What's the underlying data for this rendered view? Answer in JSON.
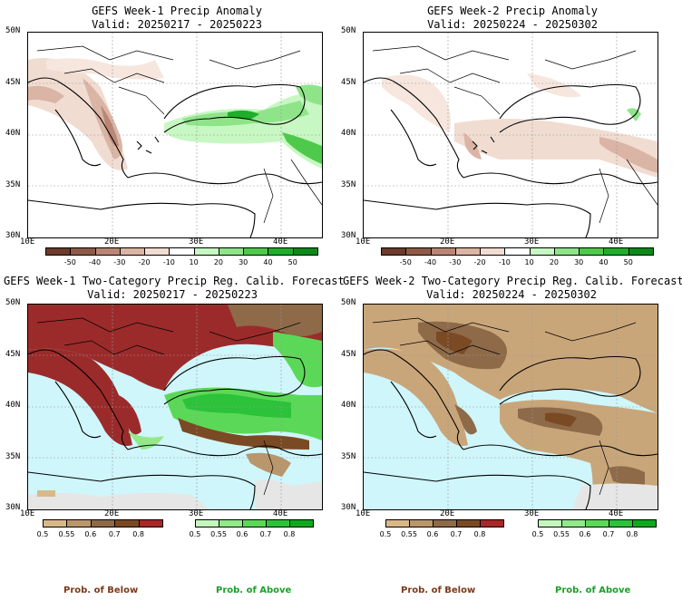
{
  "panels": {
    "p1": {
      "title": "GEFS Week-1 Precip Anomaly",
      "valid": "Valid: 20250217 - 20250223"
    },
    "p2": {
      "title": "GEFS Week-2 Precip Anomaly",
      "valid": "Valid: 20250224 - 20250302"
    },
    "p3": {
      "title": "GEFS Week-1 Two-Category Precip Reg. Calib. Forecast",
      "valid": "Valid: 20250217 - 20250223"
    },
    "p4": {
      "title": "GEFS Week-2 Two-Category Precip Reg. Calib. Forecast",
      "valid": "Valid: 20250224 - 20250302"
    }
  },
  "axes": {
    "lat_labels": [
      "50N",
      "45N",
      "40N",
      "35N",
      "30N"
    ],
    "lon_labels": [
      "10E",
      "20E",
      "30E",
      "40E"
    ]
  },
  "anomaly_colorbar": {
    "ticks": [
      "-50",
      "-40",
      "-30",
      "-20",
      "-10",
      "10",
      "20",
      "30",
      "40",
      "50"
    ],
    "colors": [
      "#6b3b2b",
      "#8e5a48",
      "#b98676",
      "#dab4a4",
      "#f1dcd2",
      "#ffffff",
      "#c7f7c2",
      "#8fe48a",
      "#4fc94c",
      "#1fae2c",
      "#0b8a1c"
    ]
  },
  "prob_below_colorbar": {
    "ticks": [
      "0.5",
      "0.55",
      "0.6",
      "0.7",
      "0.8"
    ],
    "colors": [
      "#d9b98a",
      "#b9966b",
      "#8e6a49",
      "#7a4a24",
      "#a82828"
    ]
  },
  "prob_above_colorbar": {
    "ticks": [
      "0.5",
      "0.55",
      "0.6",
      "0.7",
      "0.8"
    ],
    "colors": [
      "#c5f7bd",
      "#92e98a",
      "#5cd858",
      "#2cc23a",
      "#0ea91f"
    ]
  },
  "legend_labels": {
    "below": "Prob. of Below",
    "above": "Prob. of Above"
  },
  "colors": {
    "sea": "#cff6fb",
    "land_below": "#c9a67a",
    "dry_strong": "#9b2b2b",
    "wet": "#3fcf4a",
    "nodata": "#e6e6e6"
  }
}
